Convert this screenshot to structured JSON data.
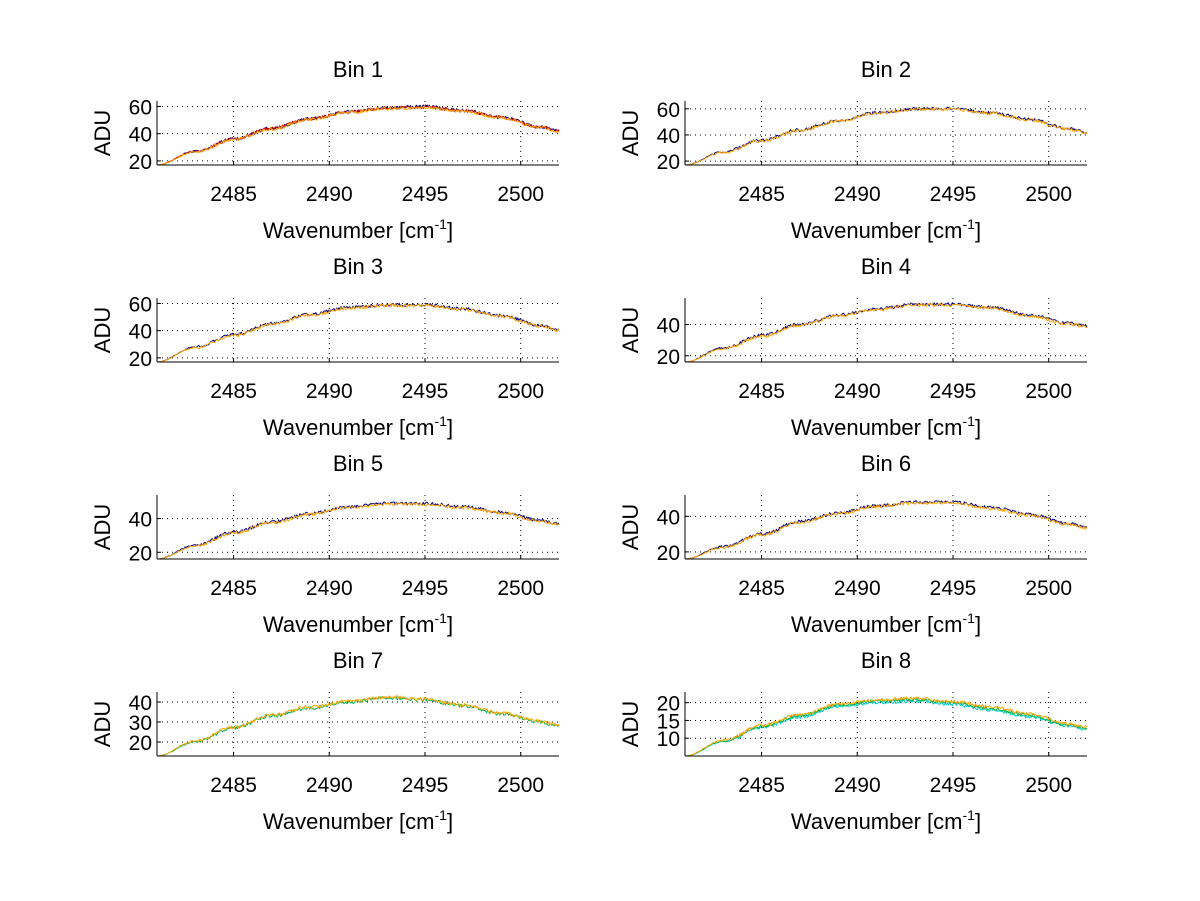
{
  "figure": {
    "background": "#ffffff"
  },
  "chart_data": [
    {
      "type": "line",
      "title": "Bin 1",
      "xlabel": "Wavenumber [cm",
      "xlabel_sup": "-1",
      "xlabel_end": "]",
      "ylabel": "ADU",
      "xlim": [
        2481,
        2502
      ],
      "ylim": [
        17,
        64
      ],
      "xticks": [
        2485,
        2490,
        2495,
        2500
      ],
      "yticks": [
        20,
        40,
        60
      ],
      "series": [
        {
          "name": "series-1",
          "color": "#000080",
          "x": [
            2481,
            2483,
            2485,
            2487,
            2489,
            2491,
            2493,
            2495,
            2497,
            2499,
            2501,
            2502
          ],
          "values": [
            17,
            27,
            36,
            44,
            51,
            56,
            59,
            60,
            57,
            52,
            45,
            42
          ]
        },
        {
          "name": "series-2",
          "color": "#cc0000",
          "x": [
            2481,
            2483,
            2485,
            2487,
            2489,
            2491,
            2493,
            2495,
            2497,
            2499,
            2501,
            2502
          ],
          "values": [
            17,
            27,
            36,
            44,
            51,
            56,
            59,
            59.5,
            57,
            52,
            45,
            42
          ]
        },
        {
          "name": "series-3",
          "color": "#ffa500",
          "x": [
            2481,
            2483,
            2485,
            2487,
            2489,
            2491,
            2493,
            2495,
            2497,
            2499,
            2501,
            2502
          ],
          "values": [
            17,
            26.5,
            35.5,
            43.5,
            50.5,
            55.5,
            58.5,
            59,
            56.5,
            51.5,
            44.5,
            41.5
          ]
        }
      ]
    },
    {
      "type": "line",
      "title": "Bin 2",
      "xlabel": "Wavenumber [cm",
      "xlabel_sup": "-1",
      "xlabel_end": "]",
      "ylabel": "ADU",
      "xlim": [
        2481,
        2502
      ],
      "ylim": [
        17,
        66
      ],
      "xticks": [
        2485,
        2490,
        2495,
        2500
      ],
      "yticks": [
        20,
        40,
        60
      ],
      "series": [
        {
          "name": "series-1",
          "color": "#000080",
          "x": [
            2481,
            2483,
            2485,
            2487,
            2489,
            2491,
            2493,
            2495,
            2497,
            2499,
            2501,
            2502
          ],
          "values": [
            17,
            27,
            36,
            44,
            51,
            57,
            60,
            60,
            57,
            52,
            45,
            42
          ]
        },
        {
          "name": "series-2",
          "color": "#ffa500",
          "x": [
            2481,
            2483,
            2485,
            2487,
            2489,
            2491,
            2493,
            2495,
            2497,
            2499,
            2501,
            2502
          ],
          "values": [
            17,
            26.5,
            35.5,
            43.5,
            50.5,
            56.5,
            59.5,
            59.5,
            56.5,
            51.5,
            44.5,
            41.5
          ]
        }
      ]
    },
    {
      "type": "line",
      "title": "Bin 3",
      "xlabel": "Wavenumber [cm",
      "xlabel_sup": "-1",
      "xlabel_end": "]",
      "ylabel": "ADU",
      "xlim": [
        2481,
        2502
      ],
      "ylim": [
        17,
        64
      ],
      "xticks": [
        2485,
        2490,
        2495,
        2500
      ],
      "yticks": [
        20,
        40,
        60
      ],
      "series": [
        {
          "name": "series-1",
          "color": "#000080",
          "x": [
            2481,
            2483,
            2485,
            2487,
            2489,
            2491,
            2493,
            2495,
            2497,
            2499,
            2501,
            2502
          ],
          "values": [
            17,
            28,
            37,
            45,
            52,
            57,
            59,
            59,
            56,
            51,
            44,
            41
          ]
        },
        {
          "name": "series-2",
          "color": "#ffa500",
          "x": [
            2481,
            2483,
            2485,
            2487,
            2489,
            2491,
            2493,
            2495,
            2497,
            2499,
            2501,
            2502
          ],
          "values": [
            17,
            27.5,
            36.5,
            44.5,
            51.5,
            56.5,
            58.5,
            58.5,
            55.5,
            50.5,
            43.5,
            40.5
          ]
        }
      ]
    },
    {
      "type": "line",
      "title": "Bin 4",
      "xlabel": "Wavenumber [cm",
      "xlabel_sup": "-1",
      "xlabel_end": "]",
      "ylabel": "ADU",
      "xlim": [
        2481,
        2502
      ],
      "ylim": [
        16,
        57
      ],
      "xticks": [
        2485,
        2490,
        2495,
        2500
      ],
      "yticks": [
        20,
        40
      ],
      "series": [
        {
          "name": "series-1",
          "color": "#000080",
          "x": [
            2481,
            2483,
            2485,
            2487,
            2489,
            2491,
            2493,
            2495,
            2497,
            2499,
            2501,
            2502
          ],
          "values": [
            16,
            25,
            33,
            40,
            46,
            50,
            53,
            53,
            51,
            46,
            41,
            39
          ]
        },
        {
          "name": "series-2",
          "color": "#ffa500",
          "x": [
            2481,
            2483,
            2485,
            2487,
            2489,
            2491,
            2493,
            2495,
            2497,
            2499,
            2501,
            2502
          ],
          "values": [
            16,
            24.5,
            32.5,
            39.5,
            45.5,
            49.5,
            52.5,
            52.5,
            50.5,
            45.5,
            40.5,
            38.5
          ]
        }
      ]
    },
    {
      "type": "line",
      "title": "Bin 5",
      "xlabel": "Wavenumber [cm",
      "xlabel_sup": "-1",
      "xlabel_end": "]",
      "ylabel": "ADU",
      "xlim": [
        2481,
        2502
      ],
      "ylim": [
        16,
        54
      ],
      "xticks": [
        2485,
        2490,
        2495,
        2500
      ],
      "yticks": [
        20,
        40
      ],
      "series": [
        {
          "name": "series-1",
          "color": "#000080",
          "x": [
            2481,
            2483,
            2485,
            2487,
            2489,
            2491,
            2493,
            2495,
            2497,
            2499,
            2501,
            2502
          ],
          "values": [
            16,
            24,
            32,
            38,
            43,
            47,
            49,
            49,
            47,
            44,
            39,
            37
          ]
        },
        {
          "name": "series-2",
          "color": "#ffa500",
          "x": [
            2481,
            2483,
            2485,
            2487,
            2489,
            2491,
            2493,
            2495,
            2497,
            2499,
            2501,
            2502
          ],
          "values": [
            16,
            23.5,
            31.5,
            37.5,
            42.5,
            46.5,
            48.5,
            48.5,
            46.5,
            43.5,
            38.5,
            36.5
          ]
        }
      ]
    },
    {
      "type": "line",
      "title": "Bin 6",
      "xlabel": "Wavenumber [cm",
      "xlabel_sup": "-1",
      "xlabel_end": "]",
      "ylabel": "ADU",
      "xlim": [
        2481,
        2502
      ],
      "ylim": [
        16,
        52
      ],
      "xticks": [
        2485,
        2490,
        2495,
        2500
      ],
      "yticks": [
        20,
        40
      ],
      "series": [
        {
          "name": "series-1",
          "color": "#000080",
          "x": [
            2481,
            2483,
            2485,
            2487,
            2489,
            2491,
            2493,
            2495,
            2497,
            2499,
            2501,
            2502
          ],
          "values": [
            16,
            23,
            30,
            37,
            42,
            46,
            48,
            48,
            45,
            41,
            36,
            34
          ]
        },
        {
          "name": "series-2",
          "color": "#ffa500",
          "x": [
            2481,
            2483,
            2485,
            2487,
            2489,
            2491,
            2493,
            2495,
            2497,
            2499,
            2501,
            2502
          ],
          "values": [
            16,
            22.5,
            29.5,
            36.5,
            41.5,
            45.5,
            47.5,
            47.5,
            44.5,
            40.5,
            35.5,
            33.5
          ]
        }
      ]
    },
    {
      "type": "line",
      "title": "Bin 7",
      "xlabel": "Wavenumber [cm",
      "xlabel_sup": "-1",
      "xlabel_end": "]",
      "ylabel": "ADU",
      "xlim": [
        2481,
        2502
      ],
      "ylim": [
        13,
        45
      ],
      "xticks": [
        2485,
        2490,
        2495,
        2500
      ],
      "yticks": [
        20,
        30,
        40
      ],
      "series": [
        {
          "name": "series-1",
          "color": "#00b050",
          "x": [
            2481,
            2483,
            2485,
            2487,
            2489,
            2491,
            2493,
            2495,
            2497,
            2499,
            2501,
            2502
          ],
          "values": [
            13,
            20,
            27,
            33,
            37,
            40,
            42,
            41,
            38,
            34,
            30,
            28
          ]
        },
        {
          "name": "series-2",
          "color": "#ffa500",
          "x": [
            2481,
            2483,
            2485,
            2487,
            2489,
            2491,
            2493,
            2495,
            2497,
            2499,
            2501,
            2502
          ],
          "values": [
            13,
            20.5,
            27.5,
            33.5,
            37.5,
            40.5,
            42.5,
            41.5,
            38.5,
            34.5,
            30.5,
            28.5
          ]
        }
      ]
    },
    {
      "type": "line",
      "title": "Bin 8",
      "xlabel": "Wavenumber [cm",
      "xlabel_sup": "-1",
      "xlabel_end": "]",
      "ylabel": "ADU",
      "xlim": [
        2481,
        2502
      ],
      "ylim": [
        5,
        23
      ],
      "xticks": [
        2485,
        2490,
        2495,
        2500
      ],
      "yticks": [
        10,
        15,
        20
      ],
      "series": [
        {
          "name": "series-1",
          "color": "#00cccc",
          "x": [
            2481,
            2483,
            2485,
            2487,
            2489,
            2491,
            2493,
            2495,
            2497,
            2499,
            2501,
            2502
          ],
          "values": [
            5,
            9,
            13,
            16,
            19,
            20,
            20.5,
            19.5,
            18,
            16,
            13.5,
            12.5
          ]
        },
        {
          "name": "series-2",
          "color": "#00b050",
          "x": [
            2481,
            2483,
            2485,
            2487,
            2489,
            2491,
            2493,
            2495,
            2497,
            2499,
            2501,
            2502
          ],
          "values": [
            5,
            9.2,
            13.3,
            16.3,
            19.3,
            20.4,
            20.9,
            19.9,
            18.4,
            16.4,
            13.8,
            12.8
          ]
        },
        {
          "name": "series-3",
          "color": "#ffa500",
          "x": [
            2481,
            2483,
            2485,
            2487,
            2489,
            2491,
            2493,
            2495,
            2497,
            2499,
            2501,
            2502
          ],
          "values": [
            5,
            9.4,
            13.6,
            16.6,
            19.6,
            20.8,
            21.3,
            20.3,
            18.8,
            16.8,
            14.1,
            13.1
          ]
        }
      ]
    }
  ]
}
